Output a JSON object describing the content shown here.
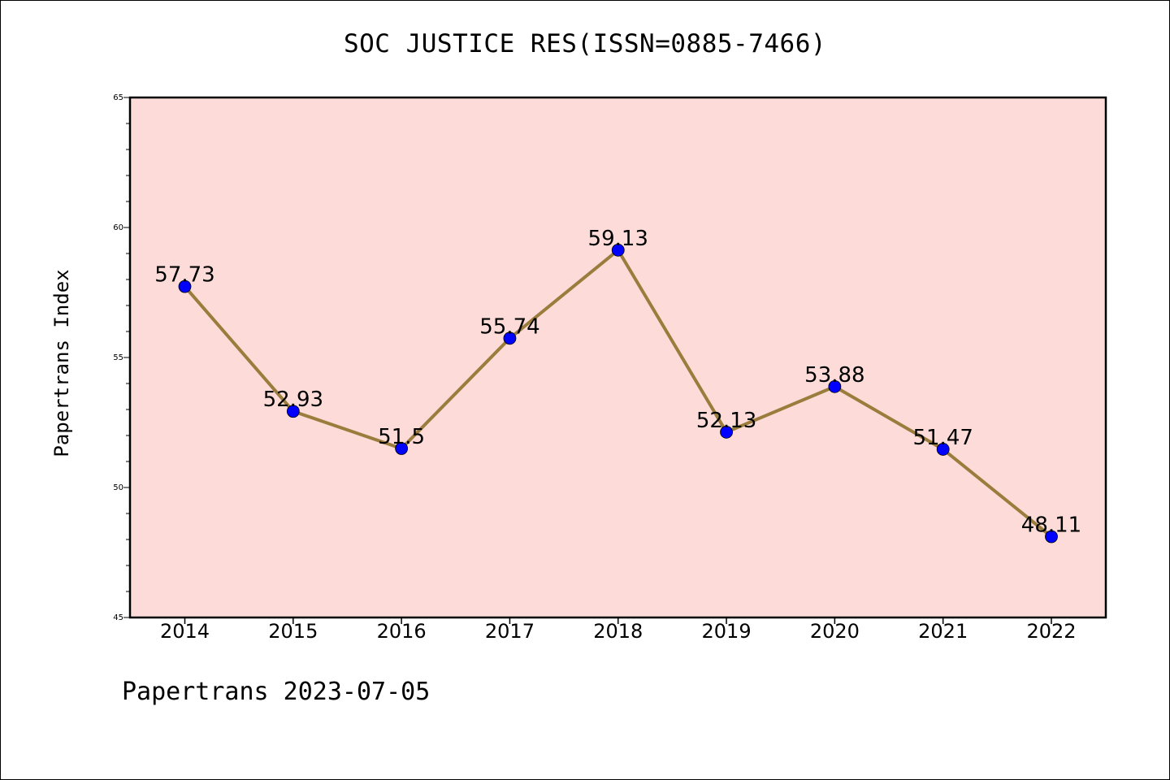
{
  "page": {
    "title": "SOC JUSTICE RES(ISSN=0885-7466)",
    "footer": "Papertrans 2023-07-05"
  },
  "chart_data": {
    "type": "line",
    "title": "SOC JUSTICE RES(ISSN=0885-7466)",
    "xlabel": "",
    "ylabel": "Papertrans Index",
    "categories": [
      "2014",
      "2015",
      "2016",
      "2017",
      "2018",
      "2019",
      "2020",
      "2021",
      "2022"
    ],
    "series": [
      {
        "values": [
          57.73,
          52.93,
          51.5,
          55.74,
          59.13,
          52.13,
          53.88,
          51.47,
          48.11
        ],
        "labels": [
          "57.73",
          "52.93",
          "51.5",
          "55.74",
          "59.13",
          "52.13",
          "53.88",
          "51.47",
          "48.11"
        ]
      }
    ],
    "ylim": [
      45,
      65
    ],
    "yticks": [
      "45",
      "50",
      "55",
      "60",
      "65"
    ],
    "grid": false,
    "colors": {
      "plot_background": "#fddbd8",
      "line": "#9a7d3c",
      "marker": "#0000ff"
    }
  }
}
